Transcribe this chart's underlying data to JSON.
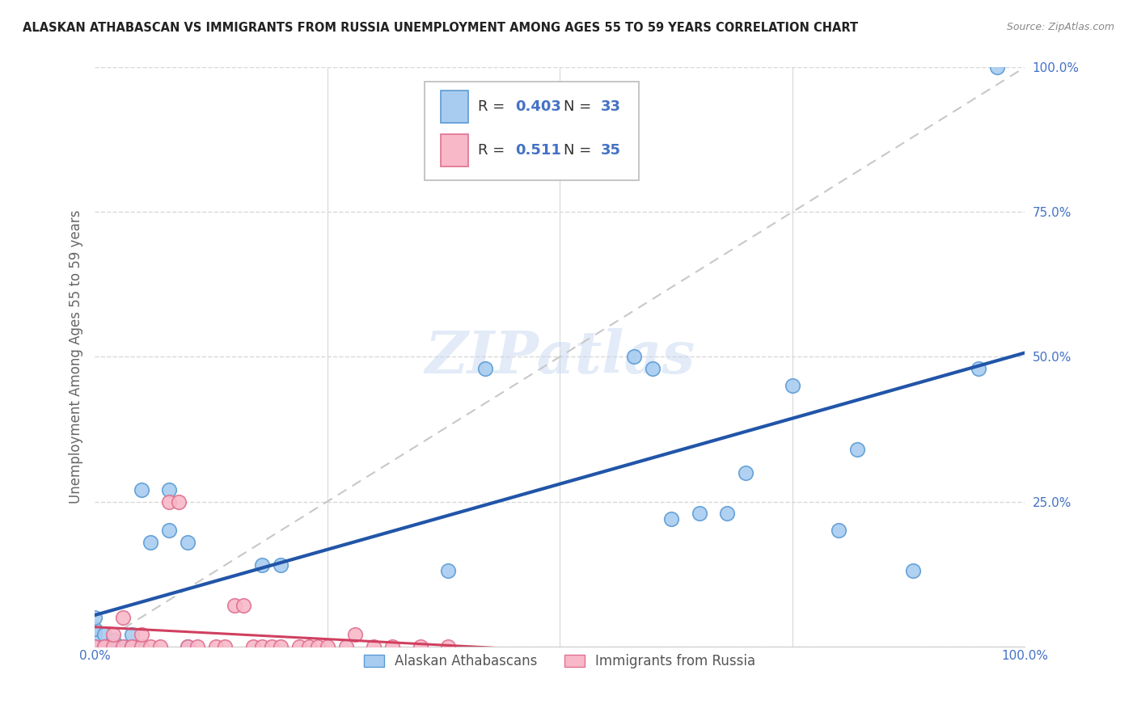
{
  "title": "ALASKAN ATHABASCAN VS IMMIGRANTS FROM RUSSIA UNEMPLOYMENT AMONG AGES 55 TO 59 YEARS CORRELATION CHART",
  "source": "Source: ZipAtlas.com",
  "ylabel": "Unemployment Among Ages 55 to 59 years",
  "xlim": [
    0,
    1.0
  ],
  "ylim": [
    0,
    1.0
  ],
  "blue_scatter_x": [
    0.02,
    0.04,
    0.0,
    0.0,
    0.0,
    0.01,
    0.01,
    0.02,
    0.03,
    0.04,
    0.05,
    0.05,
    0.06,
    0.08,
    0.08,
    0.1,
    0.1,
    0.18,
    0.2,
    0.38,
    0.42,
    0.58,
    0.6,
    0.62,
    0.65,
    0.68,
    0.7,
    0.75,
    0.8,
    0.82,
    0.88,
    0.95,
    0.97
  ],
  "blue_scatter_y": [
    0.0,
    0.0,
    0.02,
    0.03,
    0.05,
    0.0,
    0.02,
    0.01,
    0.0,
    0.02,
    0.27,
    0.0,
    0.18,
    0.27,
    0.2,
    0.18,
    0.0,
    0.14,
    0.14,
    0.13,
    0.48,
    0.5,
    0.48,
    0.22,
    0.23,
    0.23,
    0.3,
    0.45,
    0.2,
    0.34,
    0.13,
    0.48,
    1.0
  ],
  "pink_scatter_x": [
    0.0,
    0.01,
    0.01,
    0.02,
    0.02,
    0.03,
    0.03,
    0.04,
    0.04,
    0.05,
    0.05,
    0.06,
    0.07,
    0.08,
    0.09,
    0.1,
    0.11,
    0.13,
    0.14,
    0.15,
    0.16,
    0.17,
    0.18,
    0.19,
    0.2,
    0.22,
    0.23,
    0.24,
    0.25,
    0.27,
    0.28,
    0.3,
    0.32,
    0.35,
    0.38
  ],
  "pink_scatter_y": [
    0.0,
    0.0,
    0.0,
    0.0,
    0.02,
    0.0,
    0.05,
    0.0,
    0.0,
    0.0,
    0.02,
    0.0,
    0.0,
    0.25,
    0.25,
    0.0,
    0.0,
    0.0,
    0.0,
    0.07,
    0.07,
    0.0,
    0.0,
    0.0,
    0.0,
    0.0,
    0.0,
    0.0,
    0.0,
    0.0,
    0.02,
    0.0,
    0.0,
    0.0,
    0.0
  ],
  "blue_R": 0.403,
  "blue_N": 33,
  "pink_R": 0.511,
  "pink_N": 35,
  "blue_color": "#A8CCF0",
  "pink_color": "#F8B8C8",
  "blue_edge_color": "#5B9BD5",
  "pink_edge_color": "#E07090",
  "blue_line_color": "#2155A8",
  "pink_line_color": "#D04060",
  "diag_line_color": "#C8C8C8",
  "watermark": "ZIPatlas",
  "legend_label_blue": "Alaskan Athabascans",
  "legend_label_pink": "Immigrants from Russia",
  "background_color": "#FFFFFF",
  "grid_color": "#D8D8D8",
  "R_N_color": "#4472C4",
  "title_color": "#222222",
  "source_color": "#888888",
  "ylabel_color": "#666666",
  "tick_color": "#4472C4"
}
